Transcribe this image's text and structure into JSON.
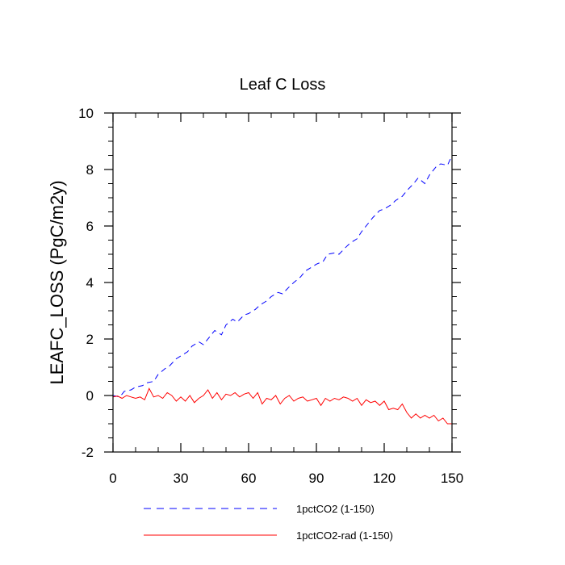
{
  "chart_data": {
    "type": "line",
    "title": "Leaf C Loss",
    "xlabel": "",
    "ylabel": "LEAFC_LOSS  (PgC/m2y)",
    "xlim": [
      0,
      150
    ],
    "ylim": [
      -2,
      10
    ],
    "x_ticks": [
      0,
      30,
      60,
      90,
      120,
      150
    ],
    "x_tick_labels": [
      "0",
      "30",
      "60",
      "90",
      "120",
      "150"
    ],
    "y_ticks": [
      -2,
      0,
      2,
      4,
      6,
      8,
      10
    ],
    "y_tick_labels": [
      "-2",
      "0",
      "2",
      "4",
      "6",
      "8",
      "10"
    ],
    "grid": false,
    "legend_position": "bottom",
    "series": [
      {
        "name": "1pctCO2 (1-150)",
        "color": "#0000ff",
        "style": "dashed",
        "x": [
          0,
          3,
          5,
          8,
          10,
          13,
          15,
          18,
          20,
          23,
          25,
          28,
          30,
          33,
          35,
          38,
          40,
          43,
          45,
          48,
          50,
          53,
          55,
          58,
          60,
          63,
          65,
          68,
          70,
          73,
          75,
          78,
          80,
          83,
          85,
          88,
          90,
          93,
          95,
          98,
          100,
          103,
          105,
          108,
          110,
          113,
          115,
          118,
          120,
          123,
          125,
          128,
          130,
          133,
          135,
          138,
          140,
          143,
          145,
          148,
          150
        ],
        "y": [
          0.0,
          -0.05,
          0.15,
          0.2,
          0.3,
          0.35,
          0.45,
          0.5,
          0.75,
          0.95,
          1.05,
          1.3,
          1.4,
          1.55,
          1.75,
          1.9,
          1.8,
          2.1,
          2.3,
          2.15,
          2.5,
          2.7,
          2.6,
          2.85,
          2.9,
          3.05,
          3.2,
          3.35,
          3.5,
          3.65,
          3.6,
          3.85,
          4.0,
          4.2,
          4.4,
          4.55,
          4.65,
          4.75,
          5.0,
          5.05,
          5.0,
          5.25,
          5.4,
          5.55,
          5.8,
          6.1,
          6.3,
          6.55,
          6.6,
          6.75,
          6.9,
          7.05,
          7.25,
          7.5,
          7.7,
          7.5,
          7.8,
          8.1,
          8.2,
          8.15,
          8.5
        ]
      },
      {
        "name": "1pctCO2-rad (1-150)",
        "color": "#ff0000",
        "style": "solid",
        "x": [
          0,
          2,
          4,
          6,
          8,
          10,
          12,
          14,
          16,
          18,
          20,
          22,
          24,
          26,
          28,
          30,
          32,
          34,
          36,
          38,
          40,
          42,
          44,
          46,
          48,
          50,
          52,
          54,
          56,
          58,
          60,
          62,
          64,
          66,
          68,
          70,
          72,
          74,
          76,
          78,
          80,
          82,
          84,
          86,
          88,
          90,
          92,
          94,
          96,
          98,
          100,
          102,
          104,
          106,
          108,
          110,
          112,
          114,
          116,
          118,
          120,
          122,
          124,
          126,
          128,
          130,
          132,
          134,
          136,
          138,
          140,
          142,
          144,
          146,
          148,
          150
        ],
        "y": [
          -0.05,
          -0.02,
          -0.1,
          0.0,
          -0.05,
          -0.1,
          -0.05,
          -0.15,
          0.25,
          -0.05,
          0.0,
          -0.1,
          0.1,
          0.0,
          -0.2,
          -0.05,
          -0.2,
          0.0,
          -0.25,
          -0.1,
          0.0,
          0.2,
          -0.1,
          0.1,
          -0.15,
          0.05,
          0.0,
          0.1,
          -0.05,
          0.05,
          0.1,
          -0.1,
          0.1,
          -0.3,
          -0.1,
          -0.15,
          0.0,
          -0.3,
          -0.1,
          0.0,
          -0.2,
          -0.1,
          -0.05,
          -0.2,
          -0.15,
          -0.1,
          -0.35,
          -0.1,
          -0.2,
          -0.1,
          -0.15,
          -0.05,
          -0.1,
          -0.2,
          -0.1,
          -0.35,
          -0.15,
          -0.25,
          -0.2,
          -0.35,
          -0.2,
          -0.5,
          -0.45,
          -0.5,
          -0.3,
          -0.6,
          -0.8,
          -0.65,
          -0.8,
          -0.7,
          -0.8,
          -0.7,
          -0.9,
          -0.8,
          -1.0,
          -1.0
        ]
      }
    ]
  }
}
